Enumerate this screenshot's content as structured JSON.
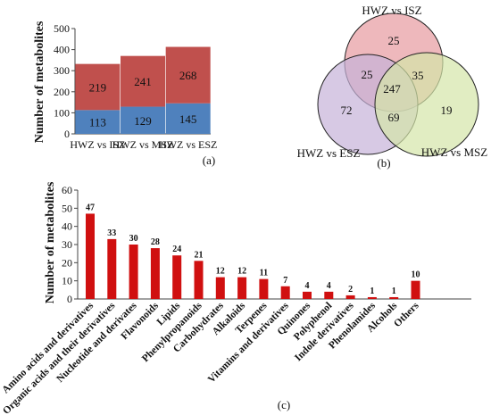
{
  "chart_data": [
    {
      "type": "bar",
      "stacked": true,
      "panel_label": "(a)",
      "ylabel": "Number of metabolites",
      "ylim": [
        0,
        500
      ],
      "yticks": [
        0,
        100,
        200,
        300,
        400,
        500
      ],
      "categories": [
        "HWZ vs ISZ",
        "HWZ vs MSZ",
        "HWZ vs ESZ"
      ],
      "series": [
        {
          "values": [
            113,
            129,
            145
          ],
          "color": "#4f81bd"
        },
        {
          "values": [
            219,
            241,
            268
          ],
          "color": "#c0504d"
        }
      ],
      "grid": false,
      "legend": "none"
    },
    {
      "type": "venn",
      "panel_label": "(b)",
      "sets": [
        {
          "label": "HWZ vs ISZ",
          "color": "#e8a0a6"
        },
        {
          "label": "HWZ vs ESZ",
          "color": "#c6b2d9"
        },
        {
          "label": "HWZ vs MSZ",
          "color": "#d4e6a8"
        }
      ],
      "regions": {
        "ISZ_only": 25,
        "ESZ_only": 72,
        "MSZ_only": 19,
        "ISZ_ESZ": 25,
        "ISZ_MSZ": 35,
        "ESZ_MSZ": 69,
        "all_three": 247
      }
    },
    {
      "type": "bar",
      "panel_label": "(c)",
      "ylabel": "Number of metabolites",
      "ylim": [
        0,
        60
      ],
      "yticks": [
        0,
        10,
        20,
        30,
        40,
        50,
        60
      ],
      "categories": [
        "Amino acids and derivatives",
        "Organic acids and their derivatives",
        "Nucleotide and derivates",
        "Flavonoids",
        "Lipids",
        "Phenylpropanoids",
        "Carbohydrates",
        "Alkaloids",
        "Terpenes",
        "Vitamins and derivatives",
        "Quinones",
        "Polyphenol",
        "Indole derivatives",
        "Phenolamides",
        "Alcohols",
        "Others"
      ],
      "values": [
        47,
        33,
        30,
        28,
        24,
        21,
        12,
        12,
        11,
        7,
        4,
        4,
        2,
        1,
        1,
        10
      ],
      "color": "#d01010",
      "grid": false,
      "legend": "none"
    }
  ]
}
